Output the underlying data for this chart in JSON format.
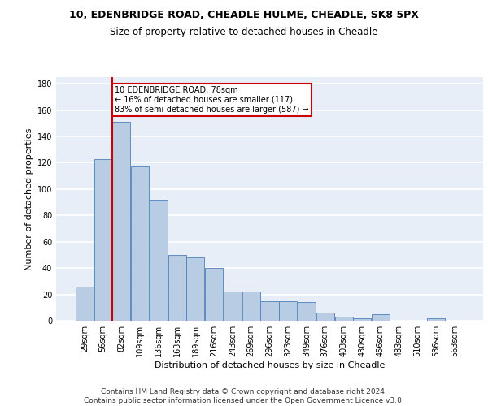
{
  "title1": "10, EDENBRIDGE ROAD, CHEADLE HULME, CHEADLE, SK8 5PX",
  "title2": "Size of property relative to detached houses in Cheadle",
  "xlabel": "Distribution of detached houses by size in Cheadle",
  "ylabel": "Number of detached properties",
  "bar_labels": [
    "29sqm",
    "56sqm",
    "82sqm",
    "109sqm",
    "136sqm",
    "163sqm",
    "189sqm",
    "216sqm",
    "243sqm",
    "269sqm",
    "296sqm",
    "323sqm",
    "349sqm",
    "376sqm",
    "403sqm",
    "430sqm",
    "456sqm",
    "483sqm",
    "510sqm",
    "536sqm",
    "563sqm"
  ],
  "bar_values": [
    26,
    123,
    151,
    117,
    92,
    50,
    48,
    40,
    22,
    22,
    15,
    15,
    14,
    6,
    3,
    2,
    5,
    0,
    0,
    2,
    0
  ],
  "bar_color": "#b8cce4",
  "bar_edge_color": "#4f7fba",
  "annotation_text": "10 EDENBRIDGE ROAD: 78sqm\n← 16% of detached houses are smaller (117)\n83% of semi-detached houses are larger (587) →",
  "annotation_box_color": "white",
  "annotation_box_edge_color": "#cc0000",
  "vline_color": "#cc0000",
  "vline_x": 1.5,
  "ylim": [
    0,
    185
  ],
  "yticks": [
    0,
    20,
    40,
    60,
    80,
    100,
    120,
    140,
    160,
    180
  ],
  "background_color": "#e8eef8",
  "grid_color": "#ffffff",
  "footer_line1": "Contains HM Land Registry data © Crown copyright and database right 2024.",
  "footer_line2": "Contains public sector information licensed under the Open Government Licence v3.0.",
  "title_fontsize": 9,
  "subtitle_fontsize": 8.5,
  "axis_label_fontsize": 8,
  "tick_fontsize": 7,
  "footer_fontsize": 6.5,
  "annot_fontsize": 7
}
